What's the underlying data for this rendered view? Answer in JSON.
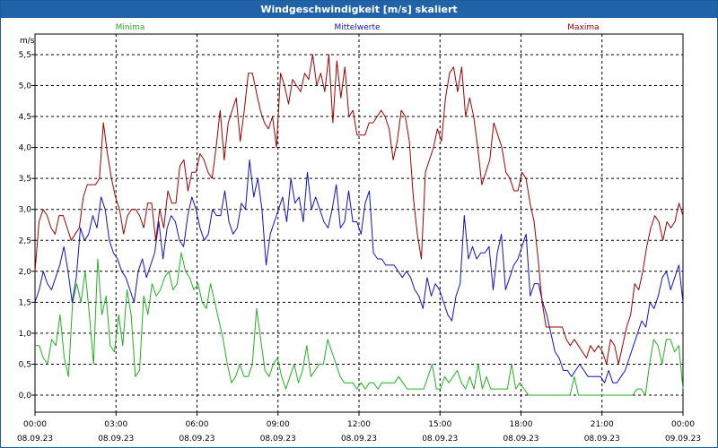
{
  "window": {
    "title": "Windgeschwindigkeit [m/s] skaliert"
  },
  "colors": {
    "min": "#1fb21f",
    "mean": "#1010c8",
    "max": "#a00000",
    "grid": "#000000",
    "title_bg": "#2063a8"
  },
  "chart_data": {
    "type": "line",
    "title": "Windgeschwindigkeit [m/s] skaliert",
    "ylabel": "m/s",
    "ylim": [
      -0.2,
      5.7
    ],
    "xlim": [
      0,
      24
    ],
    "y_ticks": [
      "0,0",
      "0,5",
      "1,0",
      "1,5",
      "2,0",
      "2,5",
      "3,0",
      "3,5",
      "4,0",
      "4,5",
      "5,0",
      "5,5"
    ],
    "x_ticks": [
      {
        "time": "00:00",
        "date": "08.09.23"
      },
      {
        "time": "03:00",
        "date": "08.09.23"
      },
      {
        "time": "06:00",
        "date": "08.09.23"
      },
      {
        "time": "09:00",
        "date": "08.09.23"
      },
      {
        "time": "12:00",
        "date": "08.09.23"
      },
      {
        "time": "15:00",
        "date": "08.09.23"
      },
      {
        "time": "18:00",
        "date": "08.09.23"
      },
      {
        "time": "21:00",
        "date": "08.09.23"
      },
      {
        "time": "00:00",
        "date": "09.09.23"
      }
    ],
    "grid": true,
    "legend_position": "top",
    "series": [
      {
        "name": "Minima",
        "color_key": "min",
        "values": [
          0.8,
          0.8,
          0.6,
          0.5,
          0.9,
          0.8,
          1.3,
          0.6,
          0.3,
          1.5,
          1.8,
          1.5,
          2.0,
          1.3,
          0.5,
          2.2,
          1.3,
          1.6,
          0.8,
          0.7,
          1.3,
          0.8,
          1.7,
          1.3,
          0.3,
          0.4,
          1.6,
          1.3,
          1.8,
          1.6,
          1.7,
          1.9,
          2.0,
          1.7,
          1.8,
          2.3,
          2.0,
          1.9,
          1.7,
          1.8,
          1.5,
          1.4,
          1.8,
          1.5,
          1.2,
          0.9,
          0.5,
          0.2,
          0.3,
          0.5,
          0.3,
          0.3,
          0.5,
          1.4,
          0.9,
          0.4,
          0.3,
          0.5,
          0.6,
          0.3,
          0.1,
          0.3,
          0.5,
          0.2,
          0.4,
          0.8,
          0.3,
          0.4,
          0.5,
          0.5,
          0.9,
          0.7,
          0.5,
          0.3,
          0.2,
          0.2,
          0.2,
          0.1,
          0.2,
          0.1,
          0.2,
          0.2,
          0.1,
          0.2,
          0.2,
          0.2,
          0.2,
          0.3,
          0.2,
          0.1,
          0.1,
          0.1,
          0.1,
          0.1,
          0.3,
          0.5,
          0.1,
          0.1,
          0.3,
          0.2,
          0.3,
          0.4,
          0.2,
          0.1,
          0.3,
          0.1,
          0.5,
          0.1,
          0.3,
          0.1,
          0.1,
          0.1,
          0.1,
          0.1,
          0.5,
          0.1,
          0.2,
          0.1,
          0.0,
          0.0,
          0.0,
          0.0,
          0.0,
          0.0,
          0.0,
          0.0,
          0.0,
          0.0,
          0.0,
          0.3,
          0.0,
          0.0,
          0.0,
          0.0,
          0.0,
          0.0,
          0.0,
          0.0,
          0.0,
          0.0,
          0.0,
          0.0,
          0.0,
          0.0,
          0.1,
          0.1,
          0.0,
          0.5,
          0.9,
          0.8,
          0.5,
          0.9,
          0.9,
          0.7,
          0.8,
          0.1
        ]
      },
      {
        "name": "Mittelwerte",
        "color_key": "mean",
        "values": [
          1.5,
          1.7,
          2.0,
          1.8,
          1.7,
          1.9,
          2.1,
          2.4,
          2.0,
          1.5,
          1.9,
          2.7,
          2.5,
          2.6,
          2.9,
          2.7,
          3.2,
          3.0,
          2.5,
          2.3,
          2.2,
          2.0,
          1.9,
          1.7,
          1.5,
          2.0,
          2.2,
          1.9,
          2.1,
          2.3,
          2.8,
          2.2,
          2.7,
          2.9,
          2.8,
          2.5,
          2.4,
          2.9,
          3.2,
          3.0,
          2.7,
          2.5,
          2.6,
          3.0,
          2.9,
          2.9,
          3.3,
          2.8,
          2.6,
          2.7,
          3.1,
          3.0,
          3.8,
          3.2,
          3.5,
          3.0,
          2.1,
          2.6,
          2.8,
          3.0,
          3.2,
          2.8,
          3.5,
          3.1,
          3.2,
          2.8,
          3.6,
          3.0,
          3.2,
          3.0,
          2.8,
          2.7,
          3.0,
          3.4,
          2.7,
          2.8,
          3.3,
          2.8,
          2.8,
          2.6,
          3.1,
          3.3,
          2.3,
          2.2,
          2.2,
          2.1,
          2.1,
          2.1,
          2.0,
          1.9,
          2.0,
          1.9,
          1.7,
          1.6,
          1.4,
          1.9,
          1.6,
          1.8,
          1.7,
          1.5,
          1.3,
          1.2,
          1.6,
          1.8,
          2.9,
          2.2,
          2.4,
          2.2,
          2.3,
          2.3,
          2.4,
          1.7,
          2.3,
          2.6,
          1.7,
          1.9,
          2.1,
          2.2,
          2.4,
          2.6,
          1.6,
          1.8,
          1.8,
          1.5,
          1.3,
          1.0,
          0.7,
          0.6,
          0.4,
          0.4,
          0.3,
          0.4,
          0.5,
          0.4,
          0.3,
          0.3,
          0.3,
          0.3,
          0.2,
          0.4,
          0.2,
          0.2,
          0.3,
          0.4,
          0.6,
          0.8,
          1.0,
          1.2,
          1.1,
          1.5,
          1.4,
          1.6,
          1.9,
          2.0,
          1.7,
          1.9,
          2.1,
          1.5
        ]
      },
      {
        "name": "Maxima",
        "color_key": "max",
        "values": [
          2.0,
          2.8,
          3.0,
          2.9,
          2.7,
          2.6,
          2.9,
          2.9,
          2.7,
          2.5,
          2.6,
          2.7,
          3.2,
          3.4,
          3.4,
          3.4,
          3.5,
          4.4,
          3.9,
          3.5,
          3.2,
          3.0,
          2.6,
          2.9,
          3.0,
          3.0,
          2.9,
          2.7,
          3.1,
          3.1,
          2.5,
          3.0,
          2.7,
          3.3,
          3.1,
          3.1,
          3.7,
          3.8,
          3.3,
          3.6,
          3.6,
          3.9,
          3.8,
          3.6,
          3.5,
          4.0,
          4.6,
          3.8,
          4.4,
          4.6,
          4.8,
          4.1,
          4.6,
          5.2,
          5.2,
          4.9,
          4.6,
          4.4,
          4.3,
          4.5,
          4.0,
          5.2,
          5.0,
          4.7,
          5.1,
          5.0,
          4.9,
          5.2,
          5.1,
          5.5,
          5.0,
          5.2,
          4.9,
          5.5,
          4.4,
          5.4,
          4.8,
          5.3,
          4.5,
          4.6,
          4.2,
          4.2,
          4.2,
          4.4,
          4.4,
          4.5,
          4.6,
          4.5,
          4.3,
          3.8,
          4.1,
          4.6,
          4.5,
          4.1,
          3.2,
          2.6,
          2.2,
          3.6,
          3.8,
          4.0,
          4.3,
          4.1,
          4.8,
          5.2,
          5.3,
          4.9,
          5.3,
          4.5,
          4.8,
          4.5,
          4.0,
          3.4,
          3.6,
          3.8,
          4.4,
          4.2,
          4.0,
          3.6,
          3.5,
          3.3,
          3.3,
          3.6,
          3.5,
          3.1,
          2.8,
          2.2,
          1.5,
          1.1,
          1.1,
          1.1,
          1.1,
          1.1,
          0.9,
          0.8,
          0.9,
          0.8,
          0.7,
          0.6,
          0.8,
          0.7,
          0.8,
          0.7,
          0.5,
          0.9,
          0.8,
          0.5,
          0.8,
          1.1,
          1.3,
          1.8,
          1.7,
          2.0,
          2.4,
          2.7,
          2.9,
          2.8,
          2.5,
          2.8,
          2.7,
          2.8,
          3.1,
          2.9
        ]
      }
    ]
  }
}
